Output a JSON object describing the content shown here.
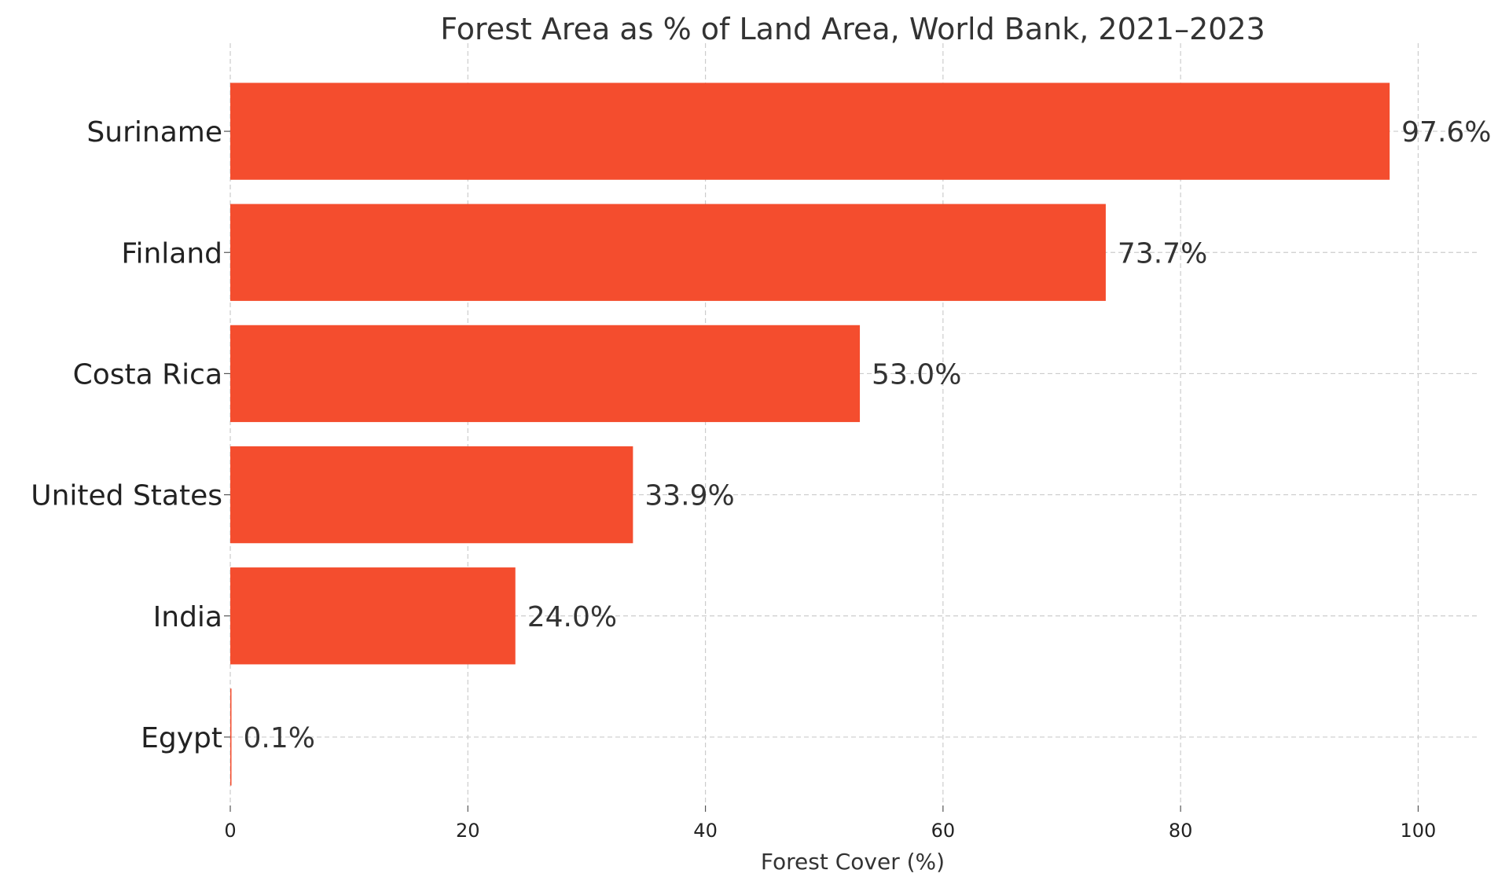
{
  "chart_data": {
    "type": "bar",
    "orientation": "horizontal",
    "title": "Forest Area as % of Land Area, World Bank, 2021–2023",
    "xlabel": "Forest Cover (%)",
    "ylabel": "",
    "xlim": [
      0,
      105
    ],
    "xticks": [
      0,
      20,
      40,
      60,
      80,
      100
    ],
    "xtick_labels": [
      "0",
      "20",
      "40",
      "60",
      "80",
      "100"
    ],
    "grid": true,
    "bar_color": "#f44d2e",
    "categories": [
      "Suriname",
      "Finland",
      "Costa Rica",
      "United States",
      "India",
      "Egypt"
    ],
    "values": [
      97.6,
      73.7,
      53.0,
      33.9,
      24.0,
      0.1
    ],
    "value_labels": [
      "97.6%",
      "73.7%",
      "53.0%",
      "33.9%",
      "24.0%",
      "0.1%"
    ]
  }
}
